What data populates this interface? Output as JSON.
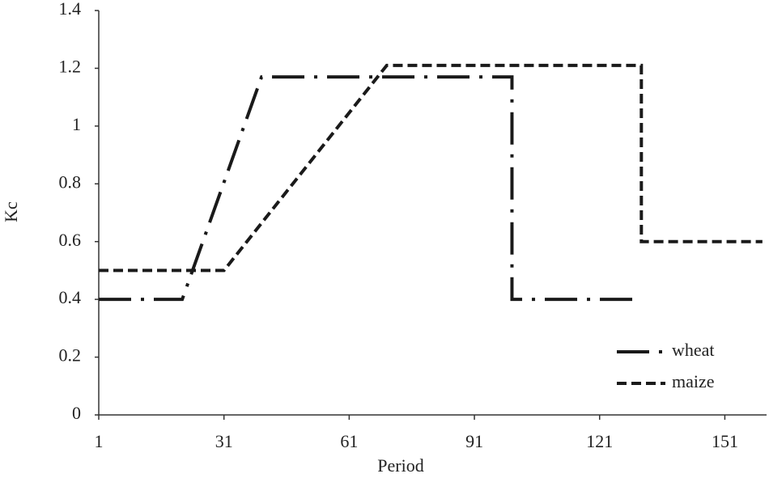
{
  "chart_data": {
    "type": "line",
    "x_label": "Period",
    "y_label": "Kc",
    "series": [
      {
        "name": "wheat",
        "color": "#1a1a1a",
        "dash": "dash-dot",
        "x": [
          1,
          21,
          40,
          100,
          100,
          130
        ],
        "values": [
          0.4,
          0.4,
          1.17,
          1.17,
          0.4,
          0.4
        ]
      },
      {
        "name": "maize",
        "color": "#1a1a1a",
        "dash": "dashed",
        "x": [
          1,
          31,
          70,
          131,
          131,
          160
        ],
        "values": [
          0.5,
          0.5,
          1.21,
          1.21,
          0.6,
          0.6
        ]
      }
    ],
    "xlim": [
      1,
      161
    ],
    "xticks": [
      1,
      31,
      61,
      91,
      121,
      151
    ],
    "ylim": [
      0,
      1.4
    ],
    "yticks": [
      0,
      0.2,
      0.4,
      0.6,
      0.8,
      1,
      1.2,
      1.4
    ],
    "grid": false,
    "legend": "lower right"
  }
}
